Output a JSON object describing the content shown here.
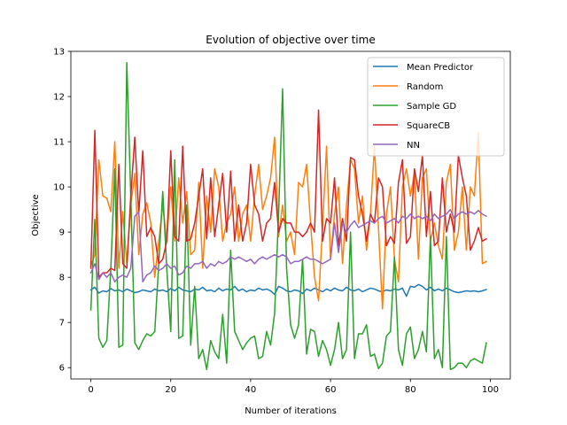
{
  "chart_data": {
    "type": "line",
    "title": "Evolution of objective over time",
    "xlabel": "Number of iterations",
    "ylabel": "Objective",
    "xlim": [
      -5,
      105
    ],
    "ylim": [
      5.75,
      13.0
    ],
    "xticks": [
      0,
      20,
      40,
      60,
      80,
      100
    ],
    "yticks": [
      6,
      7,
      8,
      9,
      10,
      11,
      12,
      13
    ],
    "grid": false,
    "legend_position": "top-right",
    "x": [
      0,
      1,
      2,
      3,
      4,
      5,
      6,
      7,
      8,
      9,
      10,
      11,
      12,
      13,
      14,
      15,
      16,
      17,
      18,
      19,
      20,
      21,
      22,
      23,
      24,
      25,
      26,
      27,
      28,
      29,
      30,
      31,
      32,
      33,
      34,
      35,
      36,
      37,
      38,
      39,
      40,
      41,
      42,
      43,
      44,
      45,
      46,
      47,
      48,
      49,
      50,
      51,
      52,
      53,
      54,
      55,
      56,
      57,
      58,
      59,
      60,
      61,
      62,
      63,
      64,
      65,
      66,
      67,
      68,
      69,
      70,
      71,
      72,
      73,
      74,
      75,
      76,
      77,
      78,
      79,
      80,
      81,
      82,
      83,
      84,
      85,
      86,
      87,
      88,
      89,
      90,
      91,
      92,
      93,
      94,
      95,
      96,
      97,
      98,
      99
    ],
    "series": [
      {
        "name": "Mean Predictor",
        "color": "#1f77b4",
        "values": [
          7.72,
          7.78,
          7.65,
          7.7,
          7.68,
          7.75,
          7.7,
          7.72,
          7.68,
          7.74,
          7.7,
          7.66,
          7.68,
          7.72,
          7.7,
          7.68,
          7.74,
          7.7,
          7.72,
          7.68,
          7.75,
          7.7,
          7.78,
          7.72,
          7.7,
          7.68,
          7.74,
          7.72,
          7.78,
          7.7,
          7.72,
          7.68,
          7.76,
          7.7,
          7.74,
          7.72,
          7.8,
          7.7,
          7.74,
          7.68,
          7.72,
          7.7,
          7.76,
          7.72,
          7.74,
          7.7,
          7.62,
          7.8,
          7.76,
          7.7,
          7.68,
          7.72,
          7.7,
          7.64,
          7.74,
          7.7,
          7.76,
          7.72,
          7.68,
          7.74,
          7.7,
          7.76,
          7.72,
          7.7,
          7.78,
          7.72,
          7.7,
          7.74,
          7.68,
          7.72,
          7.76,
          7.74,
          7.7,
          7.68,
          7.72,
          7.7,
          7.74,
          7.72,
          7.76,
          7.58,
          7.8,
          7.78,
          7.84,
          7.8,
          7.72,
          7.78,
          7.7,
          7.74,
          7.7,
          7.76,
          7.72,
          7.68,
          7.66,
          7.68,
          7.7,
          7.69,
          7.7,
          7.68,
          7.7,
          7.73
        ]
      },
      {
        "name": "Random",
        "color": "#ff7f0e",
        "values": [
          8.25,
          8.5,
          10.6,
          9.8,
          9.75,
          9.45,
          11.0,
          8.2,
          9.45,
          8.3,
          9.6,
          10.3,
          8.5,
          9.4,
          9.65,
          9.2,
          8.0,
          8.8,
          9.6,
          8.8,
          10.0,
          8.8,
          10.2,
          9.2,
          9.9,
          8.5,
          8.6,
          10.1,
          8.2,
          9.8,
          9.0,
          10.4,
          10.0,
          8.8,
          9.2,
          9.4,
          10.0,
          8.8,
          9.4,
          9.6,
          8.8,
          9.8,
          10.5,
          9.5,
          9.8,
          10.2,
          11.1,
          8.9,
          9.6,
          8.8,
          9.0,
          8.5,
          10.1,
          10.0,
          10.5,
          9.2,
          8.0,
          7.48,
          9.1,
          10.9,
          8.4,
          9.4,
          10.0,
          8.3,
          9.6,
          10.6,
          10.4,
          9.2,
          9.8,
          8.6,
          9.4,
          10.9,
          9.1,
          7.3,
          9.4,
          10.0,
          8.4,
          7.9,
          10.0,
          10.4,
          9.8,
          10.3,
          8.4,
          10.2,
          10.4,
          8.8,
          9.2,
          8.7,
          8.4,
          10.1,
          10.5,
          8.6,
          9.0,
          10.0,
          8.6,
          10.0,
          9.8,
          11.2,
          8.3,
          8.35
        ]
      },
      {
        "name": "Sample GD",
        "color": "#2ca02c",
        "values": [
          7.28,
          9.28,
          6.65,
          6.45,
          6.6,
          8.2,
          10.4,
          6.45,
          6.5,
          12.75,
          9.8,
          6.55,
          6.4,
          6.6,
          6.75,
          6.7,
          6.8,
          8.3,
          9.9,
          8.2,
          6.8,
          10.6,
          6.65,
          6.7,
          9.6,
          6.5,
          7.8,
          6.2,
          6.4,
          5.96,
          6.6,
          6.35,
          6.2,
          7.18,
          6.1,
          8.6,
          6.8,
          6.6,
          6.4,
          6.55,
          6.65,
          6.7,
          6.2,
          6.25,
          6.8,
          6.5,
          7.2,
          9.4,
          12.17,
          8.2,
          6.95,
          6.65,
          6.95,
          8.4,
          6.3,
          6.85,
          6.8,
          6.25,
          6.6,
          6.4,
          6.05,
          6.4,
          7.0,
          6.2,
          6.4,
          9.0,
          6.2,
          6.75,
          6.75,
          6.95,
          6.25,
          6.3,
          5.98,
          6.1,
          6.7,
          6.8,
          8.45,
          6.4,
          6.05,
          6.75,
          6.9,
          6.2,
          6.4,
          6.8,
          6.35,
          8.9,
          6.2,
          6.4,
          6.0,
          8.9,
          5.96,
          6.0,
          6.1,
          6.1,
          6.0,
          6.15,
          6.2,
          6.15,
          6.1,
          6.55
        ]
      },
      {
        "name": "SquareCB",
        "color": "#d62728",
        "values": [
          8.2,
          11.25,
          8.0,
          8.1,
          8.1,
          8.2,
          8.15,
          10.5,
          8.3,
          8.2,
          9.8,
          11.1,
          9.4,
          10.8,
          8.9,
          9.1,
          8.9,
          8.3,
          8.4,
          8.8,
          10.8,
          8.9,
          8.8,
          10.9,
          8.8,
          8.85,
          9.2,
          9.8,
          10.4,
          8.85,
          10.2,
          8.9,
          9.6,
          10.3,
          9.0,
          10.35,
          8.8,
          9.6,
          8.8,
          9.2,
          10.5,
          9.6,
          9.4,
          8.8,
          9.2,
          9.3,
          10.1,
          9.0,
          9.3,
          9.2,
          9.2,
          9.0,
          9.0,
          8.9,
          9.0,
          9.2,
          9.0,
          11.7,
          8.8,
          9.3,
          9.2,
          10.2,
          8.7,
          9.3,
          8.8,
          10.65,
          10.6,
          9.8,
          9.4,
          8.8,
          9.4,
          9.2,
          10.2,
          10.0,
          8.7,
          8.9,
          8.75,
          10.1,
          10.6,
          8.75,
          8.9,
          10.4,
          9.9,
          10.7,
          8.9,
          9.9,
          8.7,
          8.8,
          10.2,
          9.0,
          9.4,
          9.0,
          10.7,
          10.2,
          9.8,
          8.6,
          8.8,
          9.1,
          8.8,
          8.85
        ]
      },
      {
        "name": "NN",
        "color": "#9467bd",
        "values": [
          8.1,
          8.3,
          7.95,
          8.1,
          8.0,
          8.1,
          7.9,
          8.0,
          8.05,
          8.0,
          8.2,
          9.35,
          9.45,
          7.9,
          8.05,
          8.1,
          8.25,
          8.15,
          8.2,
          8.3,
          8.2,
          8.25,
          8.05,
          8.1,
          8.25,
          8.2,
          8.3,
          8.3,
          8.35,
          8.2,
          8.3,
          8.25,
          8.35,
          8.3,
          8.35,
          8.45,
          8.4,
          8.45,
          8.4,
          8.35,
          8.4,
          8.3,
          8.4,
          8.45,
          8.4,
          8.45,
          8.5,
          8.45,
          8.5,
          8.45,
          8.3,
          8.35,
          8.35,
          8.4,
          8.45,
          8.4,
          8.4,
          8.35,
          8.3,
          8.35,
          8.4,
          9.2,
          8.55,
          9.2,
          9.0,
          9.15,
          9.25,
          9.1,
          9.15,
          9.2,
          9.25,
          9.2,
          9.3,
          9.35,
          9.2,
          9.25,
          9.3,
          9.2,
          9.35,
          9.3,
          9.4,
          9.3,
          9.35,
          9.3,
          9.35,
          9.25,
          9.4,
          9.3,
          9.35,
          9.4,
          9.5,
          9.3,
          9.4,
          9.45,
          9.4,
          9.45,
          9.4,
          9.48,
          9.4,
          9.35
        ]
      }
    ]
  }
}
